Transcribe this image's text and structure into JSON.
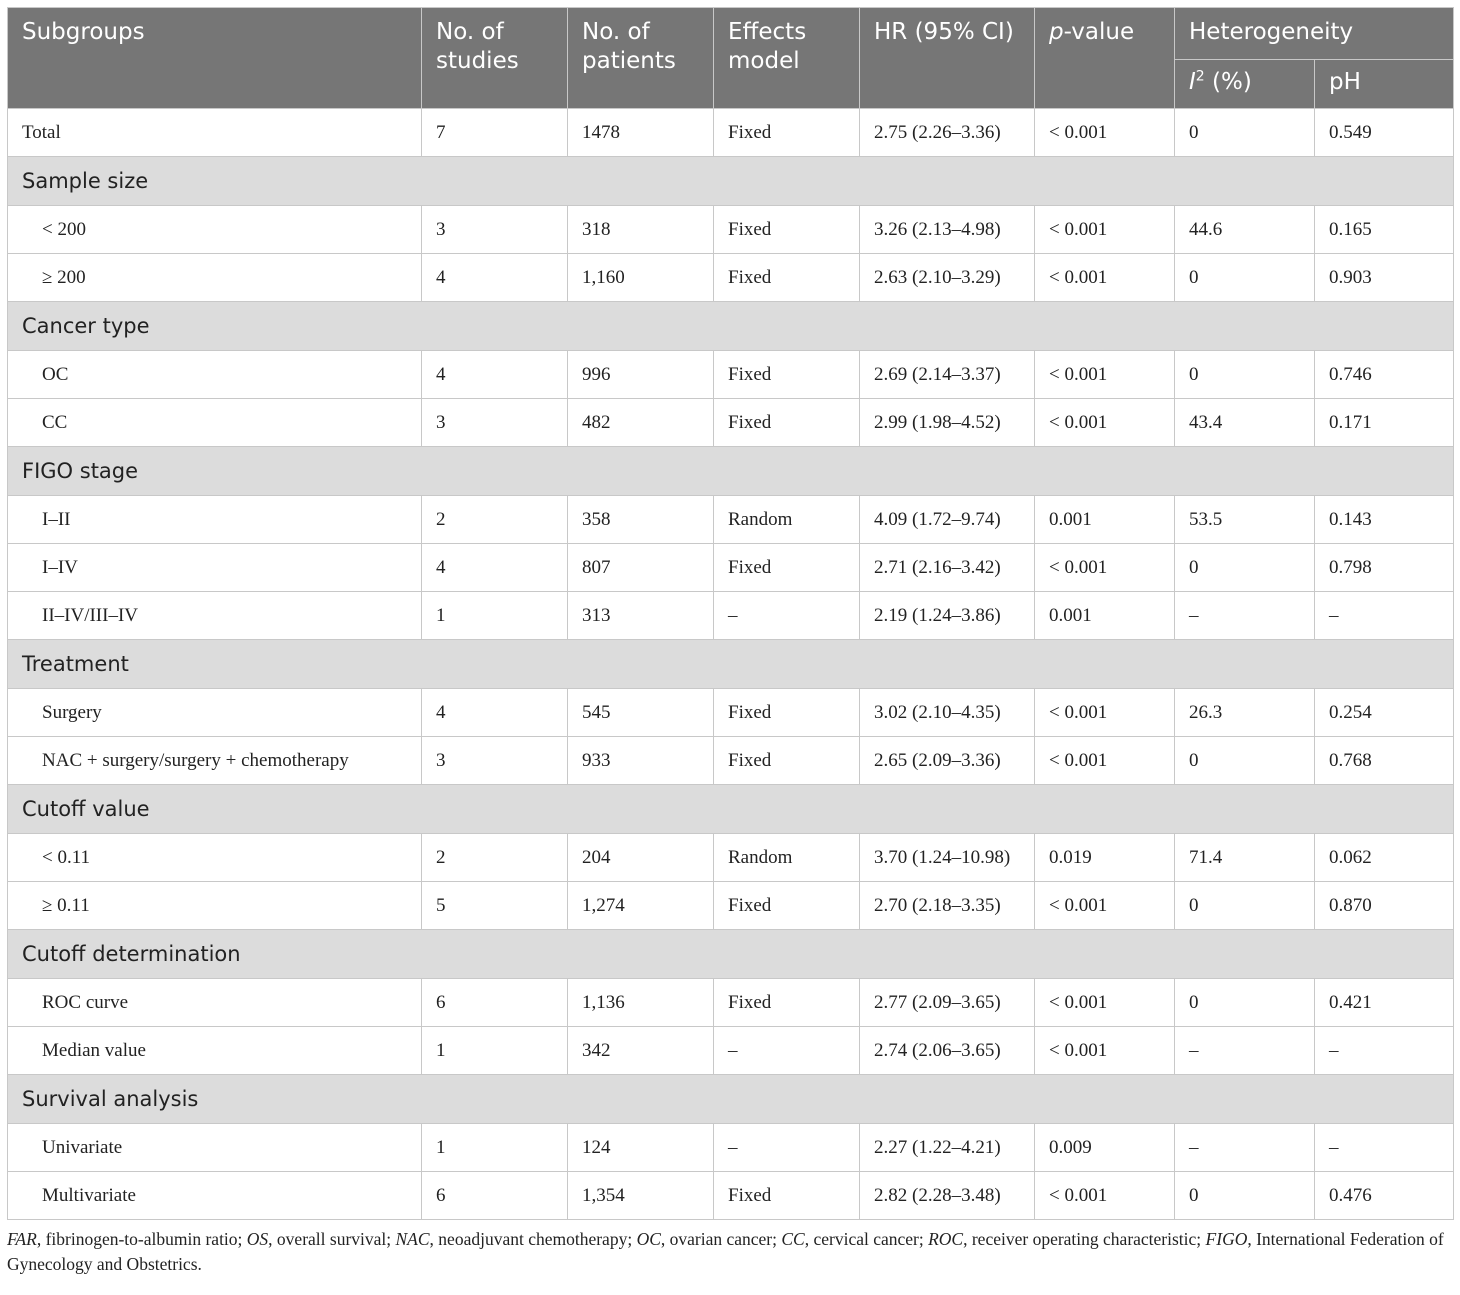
{
  "header": {
    "subgroups": "Subgroups",
    "studies": "No. of studies",
    "patients": "No. of patients",
    "effects_model": "Effects model",
    "hr": "HR (95% CI)",
    "p_italic": "p",
    "p_rest": "-value",
    "heterogeneity": "Heterogeneity",
    "i2_letter": "I",
    "i2_sup": "2",
    "i2_rest": " (%)",
    "ph": "pH"
  },
  "total_row": {
    "label": "Total",
    "cells": [
      "7",
      "1478",
      "Fixed",
      "2.75 (2.26–3.36)",
      "< 0.001",
      "0",
      "0.549"
    ]
  },
  "groups": [
    {
      "title": "Sample size",
      "rows": [
        {
          "label": "< 200",
          "cells": [
            "3",
            "318",
            "Fixed",
            "3.26 (2.13–4.98)",
            "< 0.001",
            "44.6",
            "0.165"
          ]
        },
        {
          "label": "≥ 200",
          "cells": [
            "4",
            "1,160",
            "Fixed",
            "2.63 (2.10–3.29)",
            "< 0.001",
            "0",
            "0.903"
          ]
        }
      ]
    },
    {
      "title": "Cancer type",
      "rows": [
        {
          "label": "OC",
          "cells": [
            "4",
            "996",
            "Fixed",
            "2.69 (2.14–3.37)",
            "< 0.001",
            "0",
            "0.746"
          ]
        },
        {
          "label": "CC",
          "cells": [
            "3",
            "482",
            "Fixed",
            "2.99 (1.98–4.52)",
            "< 0.001",
            "43.4",
            "0.171"
          ]
        }
      ]
    },
    {
      "title": "FIGO stage",
      "rows": [
        {
          "label": "I–II",
          "cells": [
            "2",
            "358",
            "Random",
            "4.09 (1.72–9.74)",
            "0.001",
            "53.5",
            "0.143"
          ]
        },
        {
          "label": "I–IV",
          "cells": [
            "4",
            "807",
            "Fixed",
            "2.71 (2.16–3.42)",
            "< 0.001",
            "0",
            "0.798"
          ]
        },
        {
          "label": "II–IV/III–IV",
          "cells": [
            "1",
            "313",
            "–",
            "2.19 (1.24–3.86)",
            "0.001",
            "–",
            "–"
          ]
        }
      ]
    },
    {
      "title": "Treatment",
      "rows": [
        {
          "label": "Surgery",
          "cells": [
            "4",
            "545",
            "Fixed",
            "3.02 (2.10–4.35)",
            "< 0.001",
            "26.3",
            "0.254"
          ]
        },
        {
          "label": "NAC + surgery/surgery + chemotherapy",
          "cells": [
            "3",
            "933",
            "Fixed",
            "2.65 (2.09–3.36)",
            "< 0.001",
            "0",
            "0.768"
          ]
        }
      ]
    },
    {
      "title": "Cutoff value",
      "rows": [
        {
          "label": "< 0.11",
          "cells": [
            "2",
            "204",
            "Random",
            "3.70 (1.24–10.98)",
            "0.019",
            "71.4",
            "0.062"
          ]
        },
        {
          "label": "≥ 0.11",
          "cells": [
            "5",
            "1,274",
            "Fixed",
            "2.70 (2.18–3.35)",
            "< 0.001",
            "0",
            "0.870"
          ]
        }
      ]
    },
    {
      "title": "Cutoff determination",
      "rows": [
        {
          "label": "ROC curve",
          "cells": [
            "6",
            "1,136",
            "Fixed",
            "2.77 (2.09–3.65)",
            "< 0.001",
            "0",
            "0.421"
          ]
        },
        {
          "label": "Median value",
          "cells": [
            "1",
            "342",
            "–",
            "2.74 (2.06–3.65)",
            "< 0.001",
            "–",
            "–"
          ]
        }
      ]
    },
    {
      "title": "Survival analysis",
      "rows": [
        {
          "label": "Univariate",
          "cells": [
            "1",
            "124",
            "–",
            "2.27 (1.22–4.21)",
            "0.009",
            "–",
            "–"
          ]
        },
        {
          "label": "Multivariate",
          "cells": [
            "6",
            "1,354",
            "Fixed",
            "2.82 (2.28–3.48)",
            "< 0.001",
            "0",
            "0.476"
          ]
        }
      ]
    }
  ],
  "footnote": [
    {
      "abbr": "FAR",
      "text": ", fibrinogen-to-albumin ratio; "
    },
    {
      "abbr": "OS",
      "text": ", overall survival; "
    },
    {
      "abbr": "NAC",
      "text": ", neoadjuvant chemotherapy; "
    },
    {
      "abbr": "OC",
      "text": ", ovarian cancer; "
    },
    {
      "abbr": "CC",
      "text": ", cervical cancer; "
    },
    {
      "abbr": "ROC",
      "text": ", receiver operating characteristic; "
    },
    {
      "abbr": "FIGO",
      "text": ", International Federation of Gynecology and Obstetrics."
    }
  ]
}
